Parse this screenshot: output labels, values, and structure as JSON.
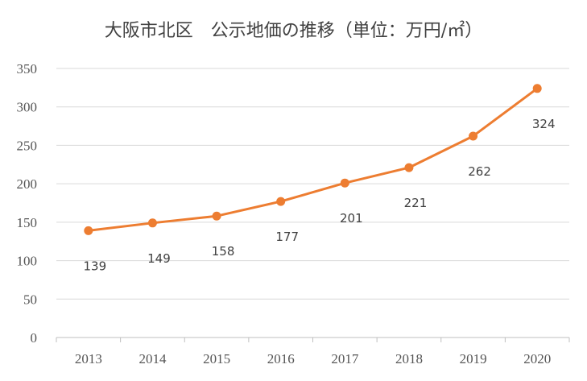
{
  "chart_data": {
    "type": "line",
    "title": "大阪市北区　公示地価の推移（単位：万円/㎡）",
    "categories": [
      "2013",
      "2014",
      "2015",
      "2016",
      "2017",
      "2018",
      "2019",
      "2020"
    ],
    "series": [
      {
        "values": [
          139,
          149,
          158,
          177,
          201,
          221,
          262,
          324
        ],
        "color": "#ED7D31"
      }
    ],
    "ylim": [
      0,
      350
    ],
    "yticks": [
      "0",
      "50",
      "100",
      "150",
      "200",
      "250",
      "300",
      "350"
    ],
    "data_labels": [
      "139",
      "149",
      "158",
      "177",
      "201",
      "221",
      "262",
      "324"
    ],
    "grid": true,
    "legend": "none"
  }
}
